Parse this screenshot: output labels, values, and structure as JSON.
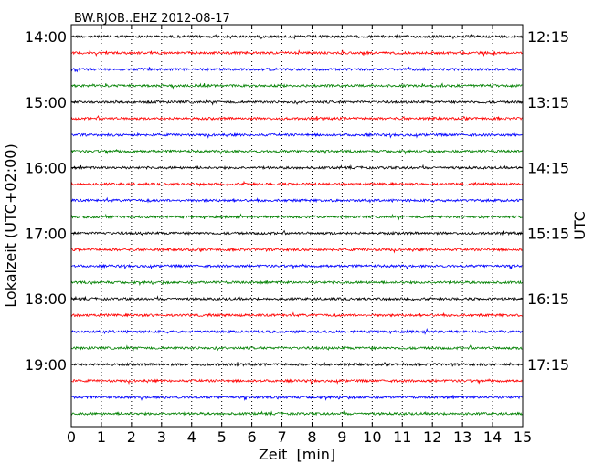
{
  "chart_data": {
    "type": "line",
    "title": "BW.RJOB..EHZ 2012-08-17",
    "xlabel": "Zeit  [min]",
    "ylabel_left": "Lokalzeit (UTC+02:00)",
    "ylabel_right": "UTC",
    "xlim": [
      0,
      15
    ],
    "x_ticks": [
      0,
      1,
      2,
      3,
      4,
      5,
      6,
      7,
      8,
      9,
      10,
      11,
      12,
      13,
      14,
      15
    ],
    "x_grid": "dotted",
    "left_ticks": [
      "14:00",
      "15:00",
      "16:00",
      "17:00",
      "18:00",
      "19:00"
    ],
    "right_ticks": [
      "12:15",
      "13:15",
      "14:15",
      "15:15",
      "16:15",
      "17:15"
    ],
    "trace_colors": [
      "#000000",
      "#ff0000",
      "#0000ff",
      "#008000"
    ],
    "trace_count": 24,
    "trace_start_hour": 14.0,
    "trace_interval_minutes": 15
  }
}
